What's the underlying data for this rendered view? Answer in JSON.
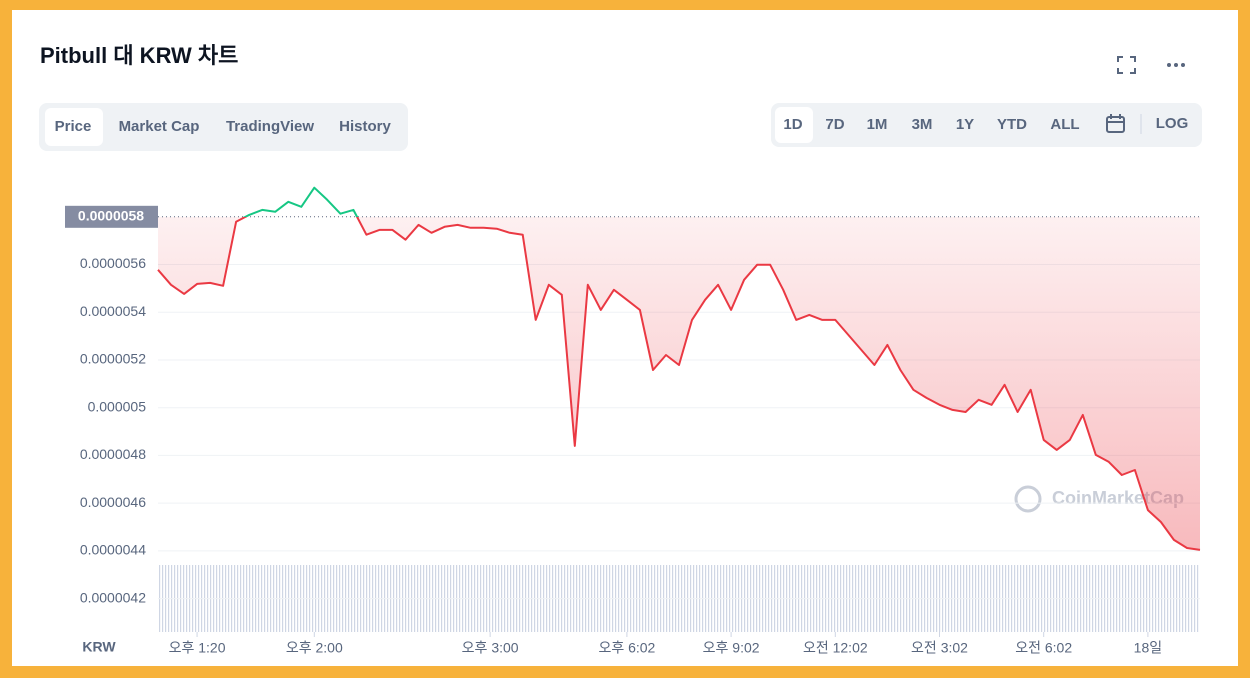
{
  "header": {
    "title": "Pitbull 대 KRW 차트"
  },
  "tabs": [
    "Price",
    "Market Cap",
    "TradingView",
    "History"
  ],
  "ranges": [
    "1D",
    "7D",
    "1M",
    "3M",
    "1Y",
    "YTD",
    "ALL"
  ],
  "log_label": "LOG",
  "chart_data": {
    "type": "line",
    "currency_label": "KRW",
    "watermark": "CoinMarketCap",
    "up_color": "#16c784",
    "down_color": "#ea3943",
    "reference": 5.8e-06,
    "xlim": [
      0,
      80
    ],
    "xticks": [
      {
        "value": 3,
        "label": "오후 1:20"
      },
      {
        "value": 12,
        "label": "오후 2:00"
      },
      {
        "value": 25.5,
        "label": "오후 3:00"
      },
      {
        "value": 36,
        "label": "오후 6:02"
      },
      {
        "value": 44,
        "label": "오후 9:02"
      },
      {
        "value": 52,
        "label": "오전 12:02"
      },
      {
        "value": 60,
        "label": "오전 3:02"
      },
      {
        "value": 68,
        "label": "오전 6:02"
      },
      {
        "value": 76,
        "label": "18일"
      }
    ],
    "ylim": [
      4.06e-06,
      6.08e-06
    ],
    "yticks": [
      4.2e-06,
      4.4e-06,
      4.6e-06,
      4.8e-06,
      5e-06,
      5.2e-06,
      5.4e-06,
      5.6e-06
    ],
    "grid": true,
    "values": [
      5.578e-06,
      5.515e-06,
      5.477e-06,
      5.519e-06,
      5.523e-06,
      5.511e-06,
      5.779e-06,
      5.808e-06,
      5.829e-06,
      5.821e-06,
      5.863e-06,
      5.842e-06,
      5.922e-06,
      5.871e-06,
      5.813e-06,
      5.829e-06,
      5.725e-06,
      5.745e-06,
      5.745e-06,
      5.704e-06,
      5.766e-06,
      5.733e-06,
      5.758e-06,
      5.766e-06,
      5.754e-06,
      5.754e-06,
      5.75e-06,
      5.733e-06,
      5.725e-06,
      5.368e-06,
      5.515e-06,
      5.473e-06,
      4.84e-06,
      5.515e-06,
      5.41e-06,
      5.494e-06,
      5.452e-06,
      5.41e-06,
      5.158e-06,
      5.221e-06,
      5.179e-06,
      5.368e-06,
      5.452e-06,
      5.515e-06,
      5.41e-06,
      5.536e-06,
      5.599e-06,
      5.599e-06,
      5.494e-06,
      5.368e-06,
      5.389e-06,
      5.368e-06,
      5.368e-06,
      5.305e-06,
      5.242e-06,
      5.179e-06,
      5.263e-06,
      5.158e-06,
      5.075e-06,
      5.041e-06,
      5.012e-06,
      4.991e-06,
      4.982e-06,
      5.033e-06,
      5.012e-06,
      5.096e-06,
      4.982e-06,
      5.075e-06,
      4.865e-06,
      4.823e-06,
      4.865e-06,
      4.97e-06,
      4.802e-06,
      4.773e-06,
      4.718e-06,
      4.739e-06,
      4.571e-06,
      4.521e-06,
      4.446e-06,
      4.412e-06,
      4.404e-06
    ]
  }
}
